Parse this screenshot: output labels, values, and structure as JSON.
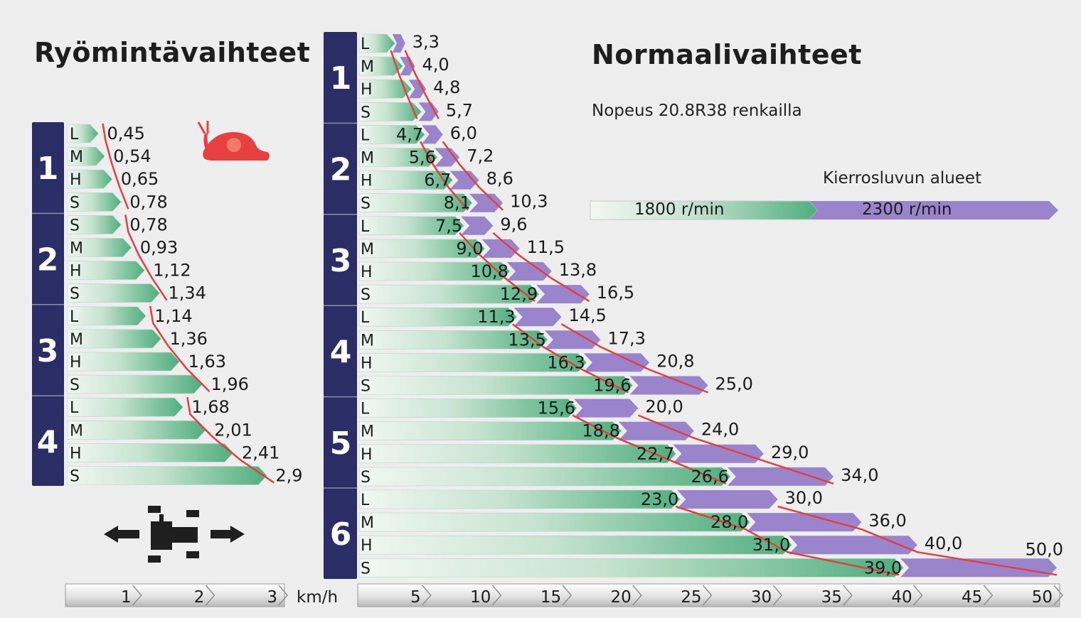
{
  "chart_data": {
    "type": "bar",
    "title_creep": "Ryömintävaihteet",
    "title_normal": "Normaalivaihteet",
    "subtitle": "Nopeus 20.8R38 renkailla",
    "legend_title": "Kierrosluvun alueet",
    "legend": [
      "1800 r/min",
      "2300 r/min"
    ],
    "unit": "km/h",
    "colors": {
      "rpm1800": "#4fae7e",
      "rpm2300": "#9a84cc",
      "curve": "#e33f3f",
      "gear_block": "#2b2e66",
      "snail": "#e84040"
    },
    "creep": {
      "xlim": [
        0,
        3
      ],
      "ticks": [
        "1",
        "2",
        "3"
      ],
      "gears": [
        {
          "gear": "1",
          "rows": [
            {
              "range": "L",
              "speed": "0,45"
            },
            {
              "range": "M",
              "speed": "0,54"
            },
            {
              "range": "H",
              "speed": "0,65"
            },
            {
              "range": "S",
              "speed": "0,78"
            }
          ]
        },
        {
          "gear": "2",
          "rows": [
            {
              "range": "S",
              "speed": "0,78"
            },
            {
              "range": "M",
              "speed": "0,93"
            },
            {
              "range": "H",
              "speed": "1,12"
            },
            {
              "range": "S",
              "speed": "1,34"
            }
          ]
        },
        {
          "gear": "3",
          "rows": [
            {
              "range": "L",
              "speed": "1,14"
            },
            {
              "range": "M",
              "speed": "1,36"
            },
            {
              "range": "H",
              "speed": "1,63"
            },
            {
              "range": "S",
              "speed": "1,96"
            }
          ]
        },
        {
          "gear": "4",
          "rows": [
            {
              "range": "L",
              "speed": "1,68"
            },
            {
              "range": "M",
              "speed": "2,01"
            },
            {
              "range": "H",
              "speed": "2,41"
            },
            {
              "range": "S",
              "speed": "2,9"
            }
          ]
        }
      ]
    },
    "normal": {
      "xlim": [
        0,
        50
      ],
      "ticks": [
        "5",
        "10",
        "15",
        "20",
        "25",
        "30",
        "35",
        "40",
        "45",
        "50"
      ],
      "gears": [
        {
          "gear": "1",
          "rows": [
            {
              "range": "L",
              "speed_2300": "3,3"
            },
            {
              "range": "M",
              "speed_2300": "4,0"
            },
            {
              "range": "H",
              "speed_2300": "4,8"
            },
            {
              "range": "S",
              "speed_2300": "5,7"
            }
          ]
        },
        {
          "gear": "2",
          "rows": [
            {
              "range": "L",
              "speed_1800": "4,7",
              "speed_2300": "6,0"
            },
            {
              "range": "M",
              "speed_1800": "5,6",
              "speed_2300": "7,2"
            },
            {
              "range": "H",
              "speed_1800": "6,7",
              "speed_2300": "8,6"
            },
            {
              "range": "S",
              "speed_1800": "8,1",
              "speed_2300": "10,3"
            }
          ]
        },
        {
          "gear": "3",
          "rows": [
            {
              "range": "L",
              "speed_1800": "7,5",
              "speed_2300": "9,6"
            },
            {
              "range": "M",
              "speed_1800": "9,0",
              "speed_2300": "11,5"
            },
            {
              "range": "H",
              "speed_1800": "10,8",
              "speed_2300": "13,8"
            },
            {
              "range": "S",
              "speed_1800": "12,9",
              "speed_2300": "16,5"
            }
          ]
        },
        {
          "gear": "4",
          "rows": [
            {
              "range": "L",
              "speed_1800": "11,3",
              "speed_2300": "14,5"
            },
            {
              "range": "M",
              "speed_1800": "13,5",
              "speed_2300": "17,3"
            },
            {
              "range": "H",
              "speed_1800": "16,3",
              "speed_2300": "20,8"
            },
            {
              "range": "S",
              "speed_1800": "19,6",
              "speed_2300": "25,0"
            }
          ]
        },
        {
          "gear": "5",
          "rows": [
            {
              "range": "L",
              "speed_1800": "15,6",
              "speed_2300": "20,0"
            },
            {
              "range": "M",
              "speed_1800": "18,8",
              "speed_2300": "24,0"
            },
            {
              "range": "H",
              "speed_1800": "22,7",
              "speed_2300": "29,0"
            },
            {
              "range": "S",
              "speed_1800": "26,6",
              "speed_2300": "34,0"
            }
          ]
        },
        {
          "gear": "6",
          "rows": [
            {
              "range": "L",
              "speed_1800": "23,0",
              "speed_2300": "30,0"
            },
            {
              "range": "M",
              "speed_1800": "28,0",
              "speed_2300": "36,0"
            },
            {
              "range": "H",
              "speed_1800": "31,0",
              "speed_2300": "40,0"
            },
            {
              "range": "S",
              "speed_1800": "39,0",
              "speed_2300": "50,0"
            }
          ]
        }
      ]
    }
  }
}
